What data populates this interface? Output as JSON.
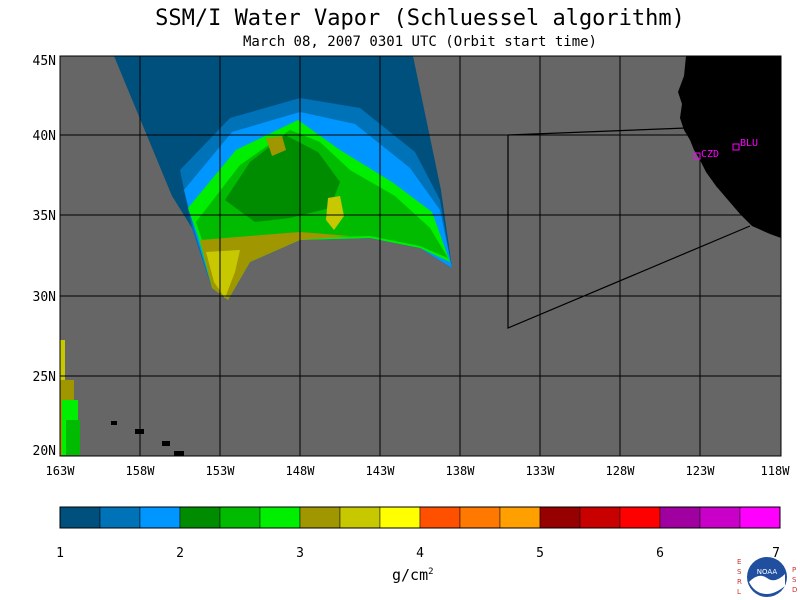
{
  "header": {
    "title": "SSM/I Water Vapor (Schluessel algorithm)",
    "subtitle": "March 08, 2007  0301 UTC  (Orbit start time)"
  },
  "map": {
    "lat_ticks": [
      "45N",
      "40N",
      "35N",
      "30N",
      "25N",
      "20N"
    ],
    "lon_ticks": [
      "163W",
      "158W",
      "153W",
      "148W",
      "143W",
      "138W",
      "133W",
      "128W",
      "123W",
      "118W"
    ],
    "stations": [
      {
        "label": "CZD"
      },
      {
        "label": "BLU"
      }
    ],
    "colors": {
      "ocean_no_data": "#666666",
      "land": "#000000",
      "station": "#ff00ff"
    }
  },
  "colorbar": {
    "tick_labels": [
      "1",
      "2",
      "3",
      "4",
      "5",
      "6",
      "7"
    ],
    "unit": "g/cm",
    "unit_sup": "2",
    "colors": [
      "#00507e",
      "#0072b8",
      "#0096ff",
      "#008c00",
      "#00bb00",
      "#00ee00",
      "#a09600",
      "#c8c800",
      "#ffff00",
      "#ff5000",
      "#ff7800",
      "#ffa000",
      "#960000",
      "#c80000",
      "#ff0000",
      "#a000a0",
      "#c800c8",
      "#ff00ff"
    ]
  },
  "logo": {
    "left_text": "ESRL",
    "right_text": "PSD",
    "center_text": "NOAA"
  }
}
